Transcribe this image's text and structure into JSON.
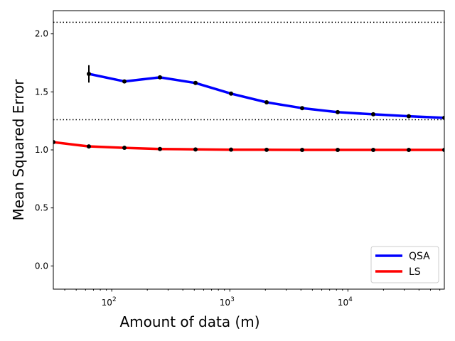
{
  "chart_data": {
    "type": "line",
    "title": "",
    "xlabel": "Amount of data (m)",
    "ylabel": "Mean Squared Error",
    "xscale": "log",
    "xlim": [
      32,
      65536
    ],
    "ylim": [
      -0.2,
      2.2
    ],
    "yticks": [
      0.0,
      0.5,
      1.0,
      1.5,
      2.0
    ],
    "ytick_labels": [
      "0.0",
      "0.5",
      "1.0",
      "1.5",
      "2.0"
    ],
    "xticks": [
      100,
      1000,
      10000
    ],
    "xtick_labels": [
      {
        "base": "10",
        "exp": "2"
      },
      {
        "base": "10",
        "exp": "3"
      },
      {
        "base": "10",
        "exp": "4"
      }
    ],
    "grid": false,
    "legend_position": "bottom-right",
    "hlines": [
      2.1,
      1.26
    ],
    "series": [
      {
        "name": "QSA",
        "color": "#0000ff",
        "x": [
          64,
          128,
          256,
          512,
          1024,
          2048,
          4096,
          8192,
          16384,
          32768,
          65536
        ],
        "y": [
          1.655,
          1.59,
          1.625,
          1.577,
          1.485,
          1.41,
          1.36,
          1.325,
          1.307,
          1.29,
          1.276
        ],
        "error_bars": [
          {
            "x": 64,
            "err": 0.075
          }
        ]
      },
      {
        "name": "LS",
        "color": "#ff0000",
        "x": [
          32,
          64,
          128,
          256,
          512,
          1024,
          2048,
          4096,
          8192,
          16384,
          32768,
          65536
        ],
        "y": [
          1.067,
          1.03,
          1.018,
          1.008,
          1.004,
          1.002,
          1.001,
          1.0,
          1.0,
          1.0,
          1.0,
          1.0
        ]
      }
    ]
  }
}
